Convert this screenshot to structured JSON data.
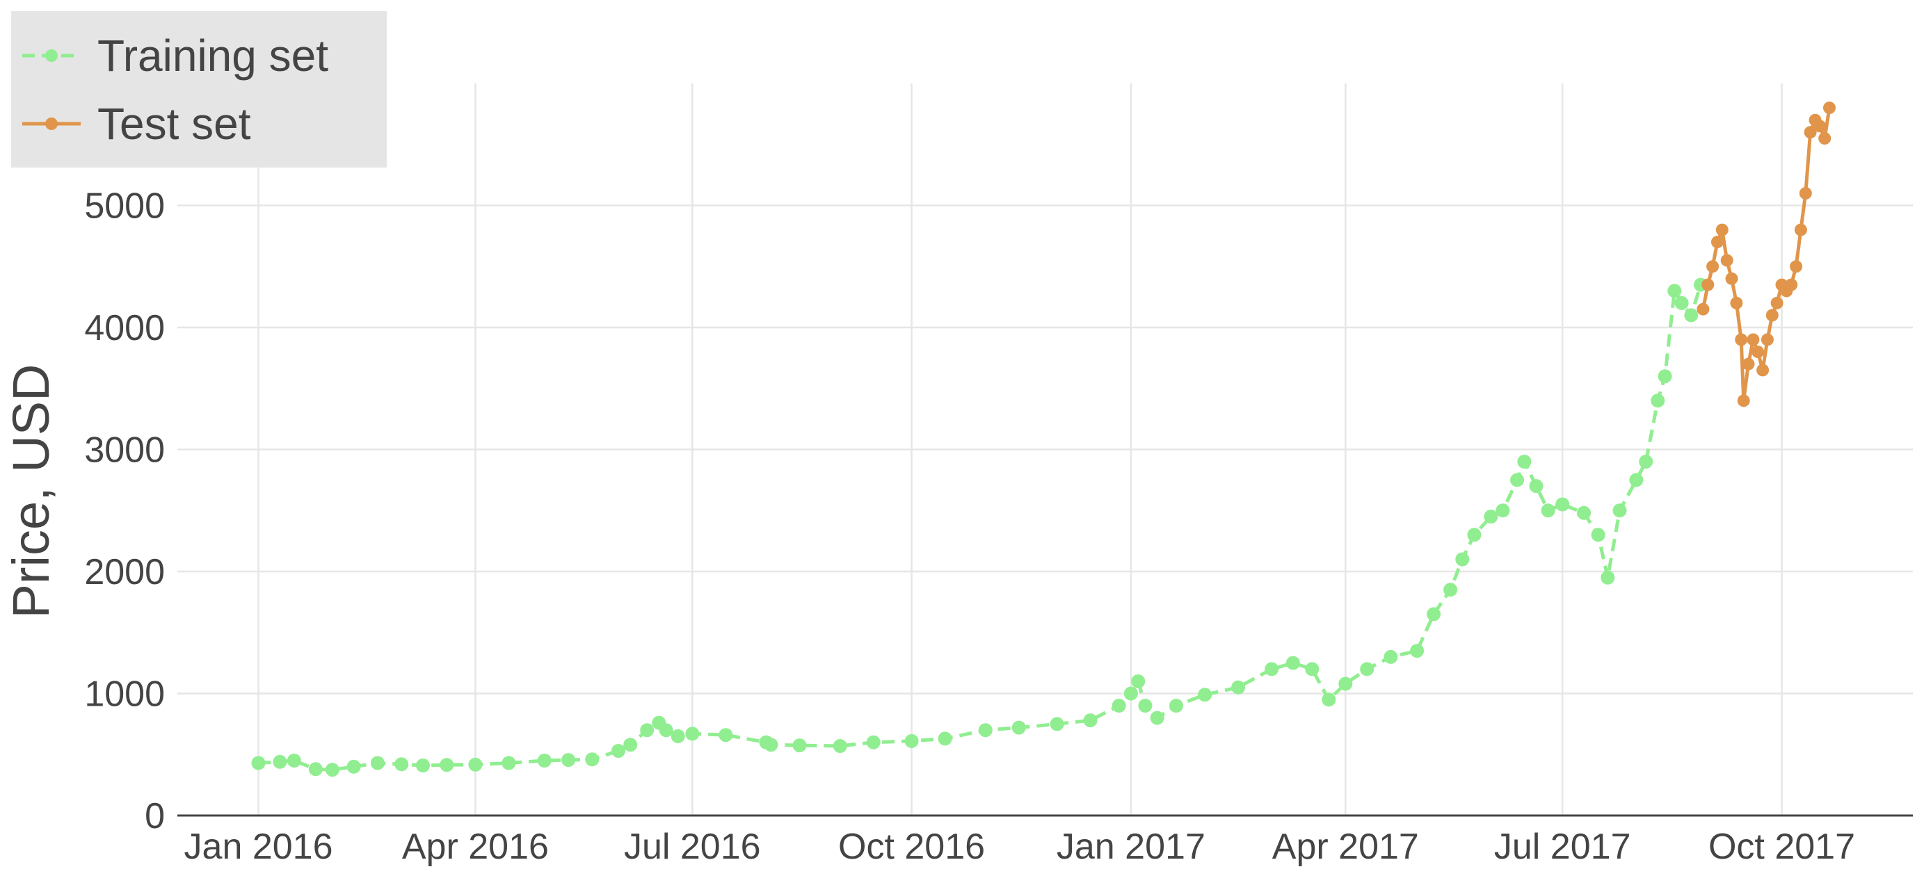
{
  "chart_data": {
    "type": "line",
    "title": "",
    "xlabel": "",
    "ylabel": "Price, USD",
    "x_axis": {
      "type": "date",
      "range": [
        "2015-11-28",
        "2017-11-25"
      ],
      "ticks": [
        {
          "date": "2016-01-01",
          "label": "Jan 2016"
        },
        {
          "date": "2016-04-01",
          "label": "Apr 2016"
        },
        {
          "date": "2016-07-01",
          "label": "Jul 2016"
        },
        {
          "date": "2016-10-01",
          "label": "Oct 2016"
        },
        {
          "date": "2017-01-01",
          "label": "Jan 2017"
        },
        {
          "date": "2017-04-01",
          "label": "Apr 2017"
        },
        {
          "date": "2017-07-01",
          "label": "Jul 2017"
        },
        {
          "date": "2017-10-01",
          "label": "Oct 2017"
        }
      ]
    },
    "y_axis": {
      "range": [
        0,
        6000
      ],
      "ticks": [
        0,
        1000,
        2000,
        3000,
        4000,
        5000
      ]
    },
    "grid": true,
    "legend": {
      "placement": "top-left",
      "background": "#e5e5e5"
    },
    "series": [
      {
        "name": "Training set",
        "color": "#90ee90",
        "mode": "lines+markers",
        "line_style": "dashed",
        "x": [
          "2016-01-01",
          "2016-01-10",
          "2016-01-16",
          "2016-01-25",
          "2016-02-01",
          "2016-02-10",
          "2016-02-20",
          "2016-03-01",
          "2016-03-10",
          "2016-03-20",
          "2016-04-01",
          "2016-04-15",
          "2016-04-30",
          "2016-05-10",
          "2016-05-20",
          "2016-05-31",
          "2016-06-05",
          "2016-06-12",
          "2016-06-17",
          "2016-06-20",
          "2016-06-25",
          "2016-07-01",
          "2016-07-15",
          "2016-08-01",
          "2016-08-03",
          "2016-08-15",
          "2016-09-01",
          "2016-09-15",
          "2016-10-01",
          "2016-10-15",
          "2016-11-01",
          "2016-11-15",
          "2016-12-01",
          "2016-12-15",
          "2016-12-27",
          "2017-01-01",
          "2017-01-04",
          "2017-01-07",
          "2017-01-12",
          "2017-01-20",
          "2017-02-01",
          "2017-02-15",
          "2017-03-01",
          "2017-03-10",
          "2017-03-18",
          "2017-03-25",
          "2017-04-01",
          "2017-04-10",
          "2017-04-20",
          "2017-05-01",
          "2017-05-08",
          "2017-05-15",
          "2017-05-20",
          "2017-05-25",
          "2017-06-01",
          "2017-06-06",
          "2017-06-12",
          "2017-06-15",
          "2017-06-20",
          "2017-06-25",
          "2017-07-01",
          "2017-07-10",
          "2017-07-16",
          "2017-07-20",
          "2017-07-25",
          "2017-08-01",
          "2017-08-05",
          "2017-08-10",
          "2017-08-13",
          "2017-08-17",
          "2017-08-20",
          "2017-08-24",
          "2017-08-28"
        ],
        "y": [
          430,
          440,
          450,
          380,
          375,
          400,
          430,
          420,
          410,
          415,
          417,
          430,
          450,
          455,
          460,
          530,
          580,
          700,
          760,
          700,
          650,
          670,
          660,
          600,
          580,
          575,
          570,
          600,
          610,
          630,
          700,
          720,
          750,
          780,
          900,
          1000,
          1100,
          900,
          800,
          900,
          990,
          1050,
          1200,
          1250,
          1200,
          950,
          1080,
          1200,
          1300,
          1350,
          1650,
          1850,
          2100,
          2300,
          2450,
          2500,
          2750,
          2900,
          2700,
          2500,
          2550,
          2480,
          2300,
          1950,
          2500,
          2750,
          2900,
          3400,
          3600,
          4300,
          4200,
          4100,
          4350
        ]
      },
      {
        "name": "Test set",
        "color": "#e0954a",
        "mode": "lines+markers",
        "line_style": "solid",
        "x": [
          "2017-08-29",
          "2017-08-31",
          "2017-09-02",
          "2017-09-04",
          "2017-09-06",
          "2017-09-08",
          "2017-09-10",
          "2017-09-12",
          "2017-09-14",
          "2017-09-15",
          "2017-09-17",
          "2017-09-19",
          "2017-09-21",
          "2017-09-23",
          "2017-09-25",
          "2017-09-27",
          "2017-09-29",
          "2017-10-01",
          "2017-10-03",
          "2017-10-05",
          "2017-10-07",
          "2017-10-09",
          "2017-10-11",
          "2017-10-13",
          "2017-10-15",
          "2017-10-17",
          "2017-10-19",
          "2017-10-21"
        ],
        "y": [
          4150,
          4350,
          4500,
          4700,
          4800,
          4550,
          4400,
          4200,
          3900,
          3400,
          3700,
          3900,
          3800,
          3650,
          3900,
          4100,
          4200,
          4350,
          4300,
          4350,
          4500,
          4800,
          5100,
          5600,
          5700,
          5650,
          5550,
          5800
        ]
      }
    ]
  }
}
